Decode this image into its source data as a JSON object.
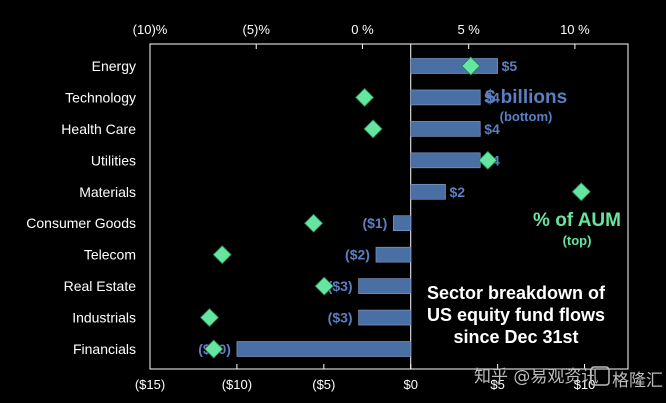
{
  "chart_data": {
    "type": "bar",
    "orientation": "horizontal",
    "categories": [
      "Energy",
      "Technology",
      "Health Care",
      "Utilities",
      "Materials",
      "Consumer Goods",
      "Telecom",
      "Real Estate",
      "Industrials",
      "Financials"
    ],
    "series": [
      {
        "name": "$ billions",
        "axis": "bottom",
        "values": [
          5,
          4,
          4,
          4,
          2,
          -1,
          -2,
          -3,
          -3,
          -10
        ],
        "labels": [
          "$5",
          "$4",
          "$4",
          "$4",
          "$2",
          "($1)",
          "($2)",
          "($3)",
          "($3)",
          "($10)"
        ]
      },
      {
        "name": "% of AUM",
        "axis": "top",
        "marker": "diamond",
        "values": [
          5.1,
          0.1,
          0.5,
          5.9,
          10.3,
          -2.3,
          -6.6,
          -1.8,
          -7.2,
          -7.0
        ]
      }
    ],
    "bottom_axis": {
      "range": [
        -15,
        12.5
      ],
      "ticks": [
        -15,
        -10,
        -5,
        0,
        5,
        10
      ],
      "tick_labels": [
        "($15)",
        "($10)",
        "($5)",
        "$0",
        "$5",
        "$10"
      ]
    },
    "top_axis": {
      "range": [
        -10,
        12.5
      ],
      "ticks": [
        -10,
        -5,
        0,
        5,
        10
      ],
      "tick_labels": [
        "(10)%",
        "(5)%",
        "0 %",
        "5 %",
        "10 %"
      ]
    },
    "grid": false,
    "colors": {
      "bar": "#4a6fa5",
      "bar_label": "#5b7fc2",
      "diamond": "#66e5a0",
      "background": "#000000",
      "frame": "#ffffff"
    }
  },
  "legend": {
    "bars_title": "$ billions",
    "bars_sub": "(bottom)",
    "diamonds_title": "% of AUM",
    "diamonds_sub": "(top)"
  },
  "annotation": {
    "lines": [
      "Sector breakdown of",
      "US equity fund flows",
      "since Dec 31st"
    ]
  },
  "watermark": {
    "text": "知乎 @易观资讯",
    "logo_text": "格隆汇"
  }
}
